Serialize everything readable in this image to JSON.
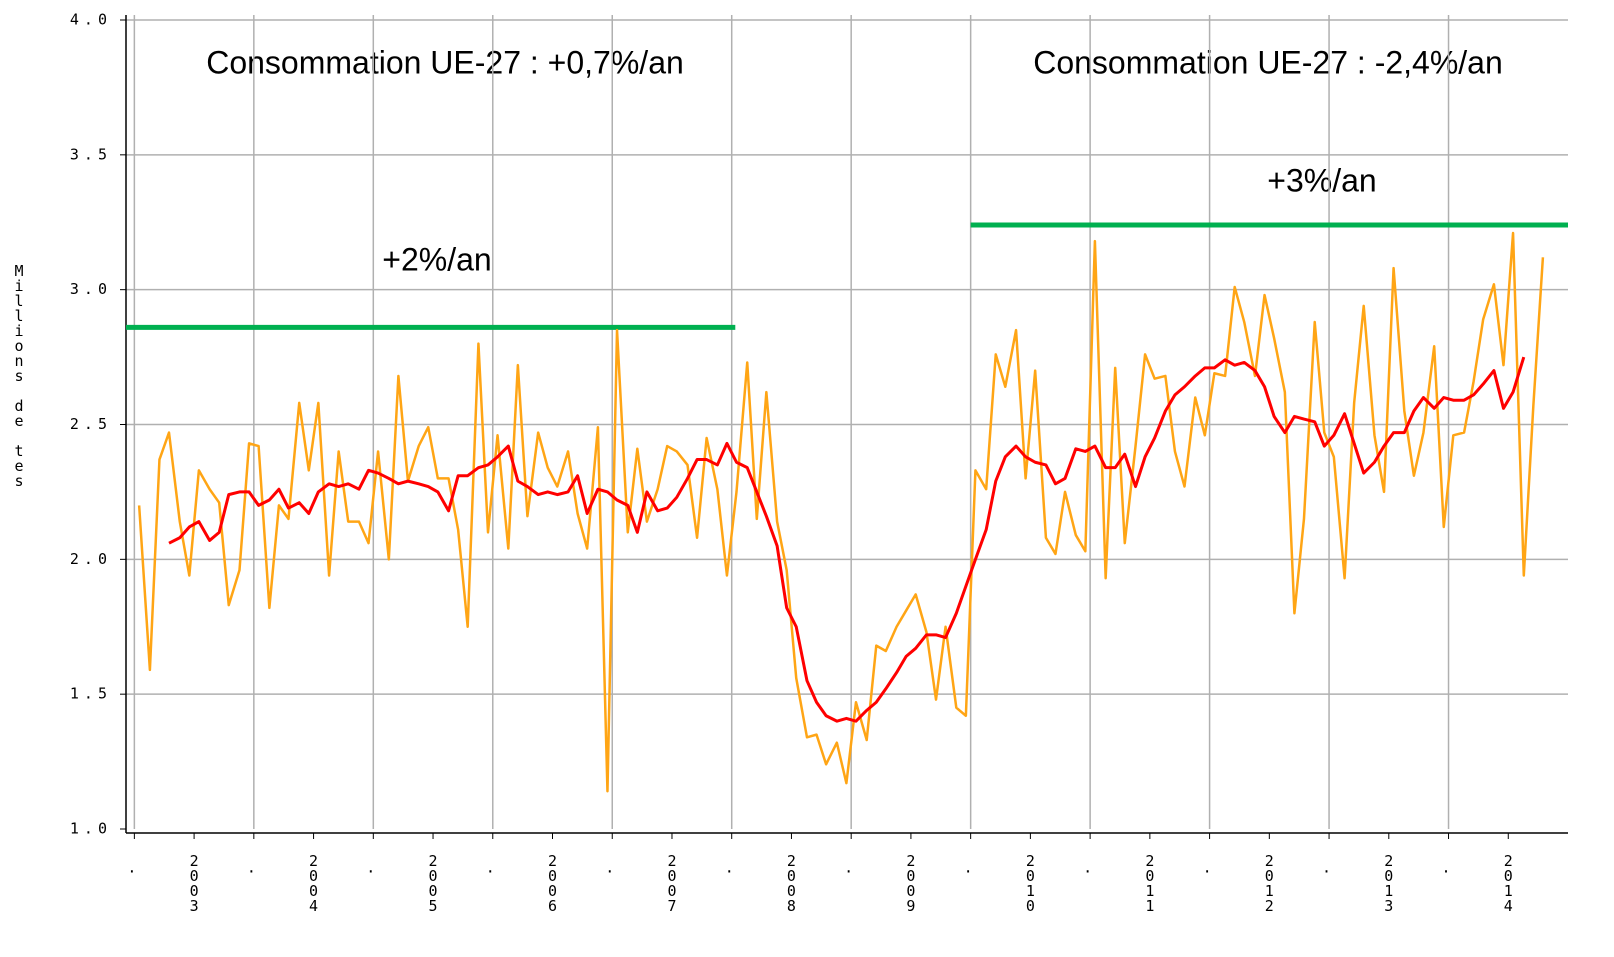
{
  "chart_data": {
    "type": "line",
    "ylabel": "Millions de tes",
    "annotations": [
      "Consommation UE-27 : +0,7%/an",
      "Consommation UE-27 : -2,4%/an"
    ],
    "trend_lines": [
      {
        "label": "+2%/an",
        "x": [
          2002.93,
          2008.03
        ],
        "y": 2.86,
        "color": "#00b050"
      },
      {
        "label": "+3%/an",
        "x": [
          2010.0,
          2015.0
        ],
        "y": 3.24,
        "color": "#00b050"
      }
    ],
    "xlim": [
      2002.93,
      2015.0
    ],
    "xticks": [
      {
        "value": 2003.5,
        "label": "2003"
      },
      {
        "value": 2004.5,
        "label": "2004"
      },
      {
        "value": 2005.5,
        "label": "2005"
      },
      {
        "value": 2006.5,
        "label": "2006"
      },
      {
        "value": 2007.5,
        "label": "2007"
      },
      {
        "value": 2008.5,
        "label": "2008"
      },
      {
        "value": 2009.5,
        "label": "2009"
      },
      {
        "value": 2010.5,
        "label": "2010"
      },
      {
        "value": 2011.5,
        "label": "2011"
      },
      {
        "value": 2012.5,
        "label": "2012"
      },
      {
        "value": 2013.5,
        "label": "2013"
      },
      {
        "value": 2014.5,
        "label": "2014"
      }
    ],
    "xminor": [
      {
        "value": 2003,
        "label": "."
      },
      {
        "value": 2004,
        "label": "."
      },
      {
        "value": 2005,
        "label": "."
      },
      {
        "value": 2006,
        "label": "."
      },
      {
        "value": 2007,
        "label": "."
      },
      {
        "value": 2008,
        "label": "."
      },
      {
        "value": 2009,
        "label": "."
      },
      {
        "value": 2010,
        "label": "."
      },
      {
        "value": 2011,
        "label": "."
      },
      {
        "value": 2012,
        "label": "."
      },
      {
        "value": 2013,
        "label": "."
      },
      {
        "value": 2014,
        "label": "."
      }
    ],
    "ylim": [
      1.0,
      4.0
    ],
    "yticks": [
      {
        "value": 1,
        "label": "1.0"
      },
      1.5,
      {
        "value": 2,
        "label": "2.0"
      },
      2.5,
      {
        "value": 3,
        "label": "3.0"
      },
      3.5,
      {
        "value": 4,
        "label": "4.0"
      }
    ],
    "grid": true,
    "x": [
      2003.04,
      2003.13,
      2003.21,
      2003.29,
      2003.38,
      2003.46,
      2003.54,
      2003.63,
      2003.71,
      2003.79,
      2003.88,
      2003.96,
      2004.04,
      2004.13,
      2004.21,
      2004.29,
      2004.38,
      2004.46,
      2004.54,
      2004.63,
      2004.71,
      2004.79,
      2004.88,
      2004.96,
      2005.04,
      2005.13,
      2005.21,
      2005.29,
      2005.38,
      2005.46,
      2005.54,
      2005.63,
      2005.71,
      2005.79,
      2005.88,
      2005.96,
      2006.04,
      2006.13,
      2006.21,
      2006.29,
      2006.38,
      2006.46,
      2006.54,
      2006.63,
      2006.71,
      2006.79,
      2006.88,
      2006.96,
      2007.04,
      2007.13,
      2007.21,
      2007.29,
      2007.38,
      2007.46,
      2007.54,
      2007.63,
      2007.71,
      2007.79,
      2007.88,
      2007.96,
      2008.04,
      2008.13,
      2008.21,
      2008.29,
      2008.38,
      2008.46,
      2008.54,
      2008.63,
      2008.71,
      2008.79,
      2008.88,
      2008.96,
      2009.04,
      2009.13,
      2009.21,
      2009.29,
      2009.38,
      2009.46,
      2009.54,
      2009.63,
      2009.71,
      2009.79,
      2009.88,
      2009.96,
      2010.04,
      2010.13,
      2010.21,
      2010.29,
      2010.38,
      2010.46,
      2010.54,
      2010.63,
      2010.71,
      2010.79,
      2010.88,
      2010.96,
      2011.04,
      2011.13,
      2011.21,
      2011.29,
      2011.38,
      2011.46,
      2011.54,
      2011.63,
      2011.71,
      2011.79,
      2011.88,
      2011.96,
      2012.04,
      2012.13,
      2012.21,
      2012.29,
      2012.38,
      2012.46,
      2012.54,
      2012.63,
      2012.71,
      2012.79,
      2012.88,
      2012.96,
      2013.04,
      2013.13,
      2013.21,
      2013.29,
      2013.38,
      2013.46,
      2013.54,
      2013.63,
      2013.71,
      2013.79,
      2013.88,
      2013.96,
      2014.04,
      2014.13,
      2014.21,
      2014.29,
      2014.38,
      2014.46,
      2014.54,
      2014.63,
      2014.71,
      2014.79
    ],
    "series": [
      {
        "color": "#ffa515",
        "width": 2.5,
        "values": [
          2.2,
          1.59,
          2.37,
          2.47,
          2.14,
          1.94,
          2.33,
          2.26,
          2.21,
          1.83,
          1.96,
          2.43,
          2.42,
          1.82,
          2.2,
          2.15,
          2.58,
          2.33,
          2.58,
          1.94,
          2.4,
          2.14,
          2.14,
          2.06,
          2.4,
          2.0,
          2.68,
          2.29,
          2.42,
          2.49,
          2.3,
          2.3,
          2.11,
          1.75,
          2.8,
          2.1,
          2.46,
          2.04,
          2.72,
          2.16,
          2.47,
          2.34,
          2.27,
          2.4,
          2.17,
          2.04,
          2.49,
          1.14,
          2.85,
          2.1,
          2.41,
          2.14,
          2.26,
          2.42,
          2.4,
          2.35,
          2.08,
          2.45,
          2.26,
          1.94,
          2.25,
          2.73,
          2.15,
          2.62,
          2.14,
          1.96,
          1.56,
          1.34,
          1.35,
          1.24,
          1.32,
          1.17,
          1.47,
          1.33,
          1.68,
          1.66,
          1.75,
          1.81,
          1.87,
          1.73,
          1.48,
          1.75,
          1.45,
          1.42,
          2.33,
          2.26,
          2.76,
          2.64,
          2.85,
          2.3,
          2.7,
          2.08,
          2.02,
          2.25,
          2.09,
          2.03,
          3.18,
          1.93,
          2.71,
          2.06,
          2.42,
          2.76,
          2.67,
          2.68,
          2.4,
          2.27,
          2.6,
          2.46,
          2.69,
          2.68,
          3.01,
          2.88,
          2.68,
          2.98,
          2.82,
          2.62,
          1.8,
          2.15,
          2.88,
          2.47,
          2.38,
          1.93,
          2.58,
          2.94,
          2.46,
          2.25,
          3.08,
          2.55,
          2.31,
          2.47,
          2.79,
          2.12,
          2.46,
          2.47,
          2.66,
          2.89,
          3.02,
          2.72,
          3.21,
          1.94,
          2.57,
          3.12
        ]
      },
      {
        "color": "#ff0000",
        "width": 3,
        "values": [
          null,
          null,
          null,
          2.06,
          2.08,
          2.12,
          2.14,
          2.07,
          2.1,
          2.24,
          2.25,
          2.25,
          2.2,
          2.22,
          2.26,
          2.19,
          2.21,
          2.17,
          2.25,
          2.28,
          2.27,
          2.28,
          2.26,
          2.33,
          2.32,
          2.3,
          2.28,
          2.29,
          2.28,
          2.27,
          2.25,
          2.18,
          2.31,
          2.31,
          2.34,
          2.35,
          2.38,
          2.42,
          2.29,
          2.27,
          2.24,
          2.25,
          2.24,
          2.25,
          2.31,
          2.17,
          2.26,
          2.25,
          2.22,
          2.2,
          2.1,
          2.25,
          2.18,
          2.19,
          2.23,
          2.3,
          2.37,
          2.37,
          2.35,
          2.43,
          2.36,
          2.34,
          2.25,
          2.16,
          2.05,
          1.82,
          1.75,
          1.55,
          1.47,
          1.42,
          1.4,
          1.41,
          1.4,
          1.44,
          1.47,
          1.52,
          1.58,
          1.64,
          1.67,
          1.72,
          1.72,
          1.71,
          1.8,
          1.9,
          2.0,
          2.11,
          2.29,
          2.38,
          2.42,
          2.38,
          2.36,
          2.35,
          2.28,
          2.3,
          2.41,
          2.4,
          2.42,
          2.34,
          2.34,
          2.39,
          2.27,
          2.38,
          2.45,
          2.55,
          2.61,
          2.64,
          2.68,
          2.71,
          2.71,
          2.74,
          2.72,
          2.73,
          2.7,
          2.64,
          2.53,
          2.47,
          2.53,
          2.52,
          2.51,
          2.42,
          2.46,
          2.54,
          2.43,
          2.32,
          2.36,
          2.42,
          2.47,
          2.47,
          2.55,
          2.6,
          2.56,
          2.6,
          2.59,
          2.59,
          2.61,
          2.65,
          2.7,
          2.56,
          2.62,
          2.75,
          null,
          null
        ]
      }
    ]
  }
}
